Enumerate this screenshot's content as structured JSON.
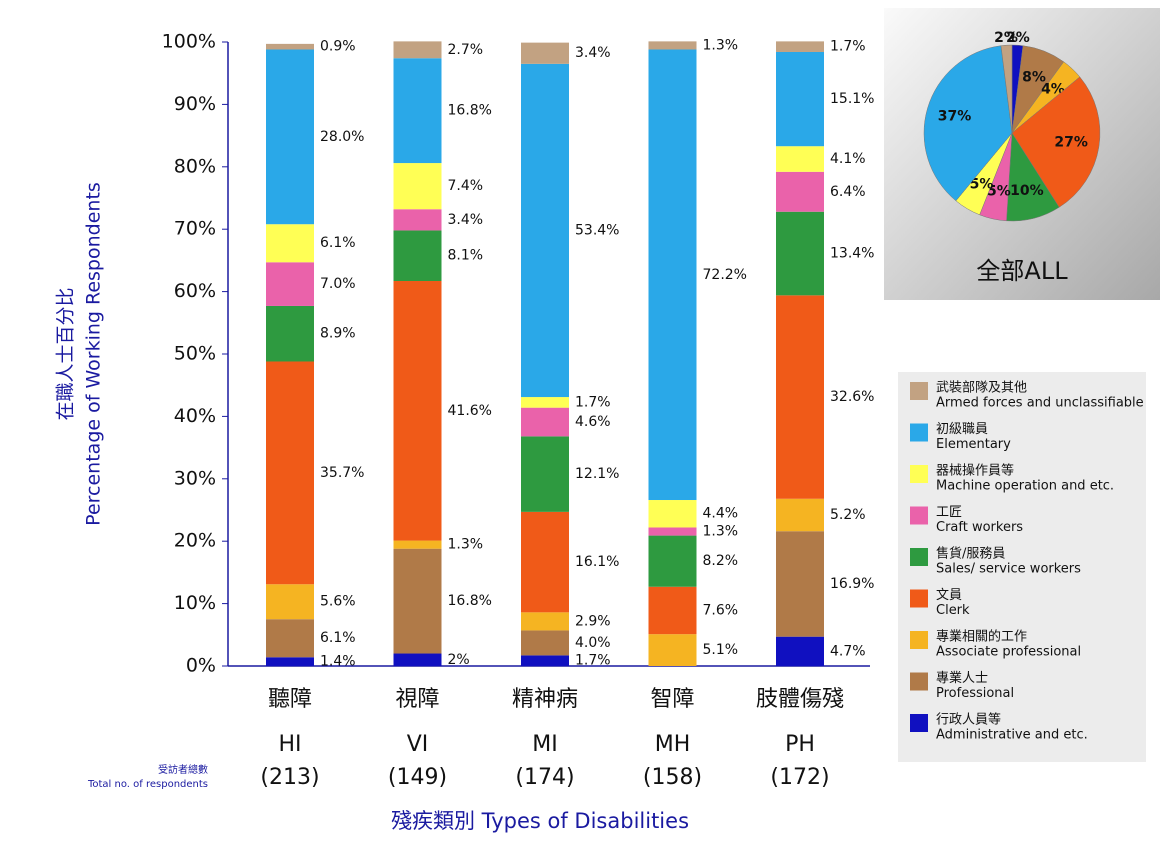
{
  "chart_data": [
    {
      "type": "stacked_bar",
      "y_label_zh": "在職人士百分比",
      "y_label": "Percentage of Working Respondents",
      "x_label": "殘疾類別 Types of Disabilities",
      "respondents_label_zh": "受訪者總數",
      "respondents_label": "Total no. of respondents",
      "categories": [
        "HI",
        "VI",
        "MI",
        "MH",
        "PH"
      ],
      "categories_zh": [
        "聽障",
        "視障",
        "精神病",
        "智障",
        "肢體傷殘"
      ],
      "respondents": [
        "(213)",
        "(149)",
        "(174)",
        "(158)",
        "(172)"
      ],
      "ylim": [
        0,
        100
      ],
      "yticks": [
        {
          "value": 0,
          "label": "0%"
        },
        {
          "value": 10,
          "label": "10%"
        },
        {
          "value": 20,
          "label": "20%"
        },
        {
          "value": 30,
          "label": "30%"
        },
        {
          "value": 40,
          "label": "40%"
        },
        {
          "value": 50,
          "label": "50%"
        },
        {
          "value": 60,
          "label": "60%"
        },
        {
          "value": 70,
          "label": "70%"
        },
        {
          "value": 80,
          "label": "80%"
        },
        {
          "value": 90,
          "label": "90%"
        },
        {
          "value": 100,
          "label": "100%"
        }
      ],
      "series": [
        {
          "name_zh": "行政人員等",
          "name": "Administrative and etc.",
          "color": "#1010c0",
          "values": [
            1.4,
            2,
            1.7,
            null,
            4.7
          ],
          "value_labels": [
            "1.4%",
            "2%",
            "1.7%",
            null,
            "4.7%"
          ]
        },
        {
          "name_zh": "專業人士",
          "name": "Professional",
          "color": "#b07a48",
          "values": [
            6.1,
            16.8,
            4.0,
            null,
            16.9
          ],
          "value_labels": [
            "6.1%",
            "16.8%",
            "4.0%",
            null,
            "16.9%"
          ]
        },
        {
          "name_zh": "專業相關的工作",
          "name": "Associate professional",
          "color": "#f5b422",
          "values": [
            5.6,
            1.3,
            2.9,
            5.1,
            5.2
          ],
          "value_labels": [
            "5.6%",
            "1.3%",
            "2.9%",
            "5.1%",
            "5.2%"
          ]
        },
        {
          "name_zh": "文員",
          "name": "Clerk",
          "color": "#f05a18",
          "values": [
            35.7,
            41.6,
            16.1,
            7.6,
            32.6
          ],
          "value_labels": [
            "35.7%",
            "41.6%",
            "16.1%",
            "7.6%",
            "32.6%"
          ]
        },
        {
          "name_zh": "售貨/服務員",
          "name": "Sales/ service workers",
          "color": "#2e9a40",
          "values": [
            8.9,
            8.1,
            12.1,
            8.2,
            13.4
          ],
          "value_labels": [
            "8.9%",
            "8.1%",
            "12.1%",
            "8.2%",
            "13.4%"
          ]
        },
        {
          "name_zh": "工匠",
          "name": "Craft workers",
          "color": "#ea62aa",
          "values": [
            7.0,
            3.4,
            4.6,
            1.3,
            6.4
          ],
          "value_labels": [
            "7.0%",
            "3.4%",
            "4.6%",
            "1.3%",
            "6.4%"
          ]
        },
        {
          "name_zh": "器械操作員等",
          "name": "Machine operation and etc.",
          "color": "#ffff55",
          "values": [
            6.1,
            7.4,
            1.7,
            4.4,
            4.1
          ],
          "value_labels": [
            "6.1%",
            "7.4%",
            "1.7%",
            "4.4%",
            "4.1%"
          ]
        },
        {
          "name_zh": "初級職員",
          "name": "Elementary",
          "color": "#2aa8e8",
          "values": [
            28.0,
            16.8,
            53.4,
            72.2,
            15.1
          ],
          "value_labels": [
            "28.0%",
            "16.8%",
            "53.4%",
            "72.2%",
            "15.1%"
          ]
        },
        {
          "name_zh": "武裝部隊及其他",
          "name": "Armed forces and unclassifiable",
          "color": "#c2a282",
          "values": [
            0.9,
            2.7,
            3.4,
            1.3,
            1.7
          ],
          "value_labels": [
            "0.9%",
            "2.7%",
            "3.4%",
            "1.3%",
            "1.7%"
          ]
        }
      ]
    },
    {
      "type": "pie",
      "title": "全部ALL",
      "categories": [
        "Administrative and etc.",
        "Professional",
        "Associate professional",
        "Clerk",
        "Sales/ service workers",
        "Craft workers",
        "Machine operation and etc.",
        "Elementary",
        "Armed forces and unclassifiable"
      ],
      "colors": [
        "#1010c0",
        "#b07a48",
        "#f5b422",
        "#f05a18",
        "#2e9a40",
        "#ea62aa",
        "#ffff55",
        "#2aa8e8",
        "#c2a282"
      ],
      "values": [
        2,
        8,
        4,
        27,
        10,
        5,
        5,
        37,
        2
      ],
      "value_labels": [
        "2%",
        "8%",
        "4%",
        "27%",
        "10%",
        "5%",
        "5%",
        "37%",
        "2%"
      ]
    }
  ]
}
